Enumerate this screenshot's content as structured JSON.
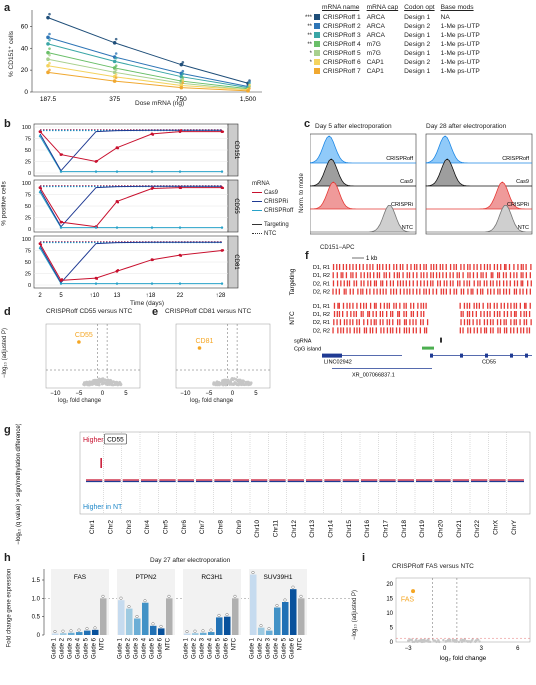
{
  "panels": [
    "a",
    "b",
    "c",
    "d",
    "e",
    "f",
    "g",
    "h",
    "i"
  ],
  "a": {
    "ylabel": "% CD151⁺ cells",
    "xlabel": "Dose mRNA (ng)",
    "xticks": [
      "187.5",
      "375",
      "750",
      "1,500"
    ],
    "yticks": [
      "0",
      "20",
      "40",
      "60"
    ],
    "table": {
      "headers": [
        "mRNA name",
        "mRNA cap",
        "Codon opt",
        "Base mods"
      ],
      "rows": [
        {
          "stars": "***",
          "name": "CRISPRoff 1",
          "cap": "ARCA",
          "codon": "Design 1",
          "mods": "NA",
          "color": "#1f4e79"
        },
        {
          "stars": "**",
          "name": "CRISPRoff 2",
          "cap": "ARCA",
          "codon": "Design 2",
          "mods": "1-Me ps-UTP",
          "color": "#2e75b6"
        },
        {
          "stars": "**",
          "name": "CRISPRoff 3",
          "cap": "ARCA",
          "codon": "Design 1",
          "mods": "1-Me ps-UTP",
          "color": "#3aa6a6"
        },
        {
          "stars": "**",
          "name": "CRISPRoff 4",
          "cap": "m7G",
          "codon": "Design 2",
          "mods": "1-Me ps-UTP",
          "color": "#6abf69"
        },
        {
          "stars": "*",
          "name": "CRISPRoff 5",
          "cap": "m7G",
          "codon": "Design 1",
          "mods": "1-Me ps-UTP",
          "color": "#a8d08d"
        },
        {
          "stars": "*",
          "name": "CRISPRoff 6",
          "cap": "CAP1",
          "codon": "Design 2",
          "mods": "1-Me ps-UTP",
          "color": "#f4d35e"
        },
        {
          "stars": "",
          "name": "CRISPRoff 7",
          "cap": "CAP1",
          "codon": "Design 1",
          "mods": "1-Me ps-UTP",
          "color": "#f0a830"
        }
      ]
    }
  },
  "b": {
    "ylabel": "% positive cells",
    "xlabel": "Time (days)",
    "xticks": [
      "2",
      "5",
      "10",
      "13",
      "18",
      "22",
      "28"
    ],
    "yticks": [
      "0",
      "25",
      "50",
      "75",
      "100"
    ],
    "facets": [
      "CD151",
      "CD55",
      "CD81"
    ],
    "legend_title": "mRNA",
    "legend": [
      "Cas9",
      "CRISPRi",
      "CRISPRoff"
    ],
    "legend2": [
      "Targeting",
      "NTC"
    ]
  },
  "c": {
    "titles": [
      "Day 5 after electroporation",
      "Day 28 after electroporation"
    ],
    "ylabel": "Norm. to mode",
    "xlabel": "CD151−APC",
    "labels": [
      "CRISPRoff",
      "Cas9",
      "CRISPRi",
      "NTC"
    ]
  },
  "d": {
    "title": "CRISPRoff CD55 versus NTC",
    "ylabel": "−log₁₀ (adjusted P)",
    "xlabel": "log₂ fold change",
    "highlight": "CD55",
    "xticks": [
      "−10",
      "−5",
      "0",
      "5"
    ]
  },
  "e": {
    "title": "CRISPRoff CD81 versus NTC",
    "xlabel": "log₂ fold change",
    "highlight": "CD81",
    "xticks": [
      "−10",
      "−5",
      "0",
      "5"
    ]
  },
  "f": {
    "scale": "1 kb",
    "groups": [
      "Targeting",
      "NTC"
    ],
    "tracks": [
      "D1, R1",
      "D1, R2",
      "D2, R1",
      "D2, R2",
      "D1, R1",
      "D1, R2",
      "D2, R1",
      "D2, R2"
    ],
    "sgRNA": "sgRNA",
    "cpg": "CpG island",
    "genes": [
      "LINC02942",
      "CD55",
      "XR_007066837.1"
    ]
  },
  "g": {
    "ylabel": "−log₁₀ (q value) × sign(methylation difference)",
    "higher_t": "Higher in T",
    "higher_nt": "Higher in NT",
    "callout": "CD55",
    "chromosomes": [
      "Chr1",
      "Chr2",
      "Chr3",
      "Chr4",
      "Chr5",
      "Chr6",
      "Chr7",
      "Chr8",
      "Chr9",
      "Chr10",
      "Chr11",
      "Chr12",
      "Chr13",
      "Chr14",
      "Chr15",
      "Chr16",
      "Chr17",
      "Chr18",
      "Chr19",
      "Chr20",
      "Chr21",
      "Chr22",
      "ChrX",
      "ChrY"
    ]
  },
  "h": {
    "title": "Day 27 after electroporation",
    "ylabel": "Fold change gene expression",
    "genes": [
      "FAS",
      "PTPN2",
      "RC3H1",
      "SUV39H1"
    ],
    "guides": [
      "Guide 1",
      "Guide 2",
      "Guide 3",
      "Guide 4",
      "Guide 5",
      "Guide 6",
      "NTC"
    ],
    "yticks": [
      "0",
      "0.5",
      "1.0",
      "1.5"
    ]
  },
  "i": {
    "title": "CRISPRoff FAS versus NTC",
    "ylabel": "−log₁₀ (adjusted P)",
    "xlabel": "log₂ fold change",
    "highlight": "FAS",
    "xticks": [
      "−3",
      "0",
      "3",
      "6"
    ],
    "yticks": [
      "0",
      "5",
      "10",
      "15",
      "20"
    ]
  },
  "chart_data": [
    {
      "type": "line",
      "panel": "a",
      "title": "",
      "xlabel": "Dose mRNA (ng)",
      "ylabel": "% CD151⁺ cells",
      "categories": [
        "187.5",
        "375",
        "750",
        "1,500"
      ],
      "ylim": [
        0,
        75
      ],
      "series": [
        {
          "name": "CRISPRoff 1",
          "values": [
            68,
            45,
            25,
            8
          ]
        },
        {
          "name": "CRISPRoff 2",
          "values": [
            50,
            32,
            17,
            5
          ]
        },
        {
          "name": "CRISPRoff 3",
          "values": [
            44,
            28,
            14,
            4
          ]
        },
        {
          "name": "CRISPRoff 4",
          "values": [
            36,
            22,
            10,
            3
          ]
        },
        {
          "name": "CRISPRoff 5",
          "values": [
            30,
            18,
            8,
            2
          ]
        },
        {
          "name": "CRISPRoff 6",
          "values": [
            24,
            14,
            6,
            2
          ]
        },
        {
          "name": "CRISPRoff 7",
          "values": [
            18,
            10,
            4,
            1
          ]
        }
      ]
    },
    {
      "type": "bar",
      "panel": "h",
      "title": "Day 27 after electroporation",
      "ylabel": "Fold change gene expression",
      "ylim": [
        0,
        1.8
      ],
      "groups": [
        {
          "name": "FAS",
          "values": [
            0.04,
            0.05,
            0.06,
            0.08,
            0.12,
            0.14,
            1.0
          ]
        },
        {
          "name": "PTPN2",
          "values": [
            0.95,
            0.72,
            0.45,
            0.88,
            0.25,
            0.18,
            1.0
          ]
        },
        {
          "name": "RC3H1",
          "values": [
            0.04,
            0.05,
            0.06,
            0.08,
            0.48,
            0.5,
            1.0
          ]
        },
        {
          "name": "SUV39H1",
          "values": [
            1.65,
            0.2,
            0.12,
            0.75,
            0.9,
            1.25,
            1.0
          ]
        }
      ]
    }
  ]
}
